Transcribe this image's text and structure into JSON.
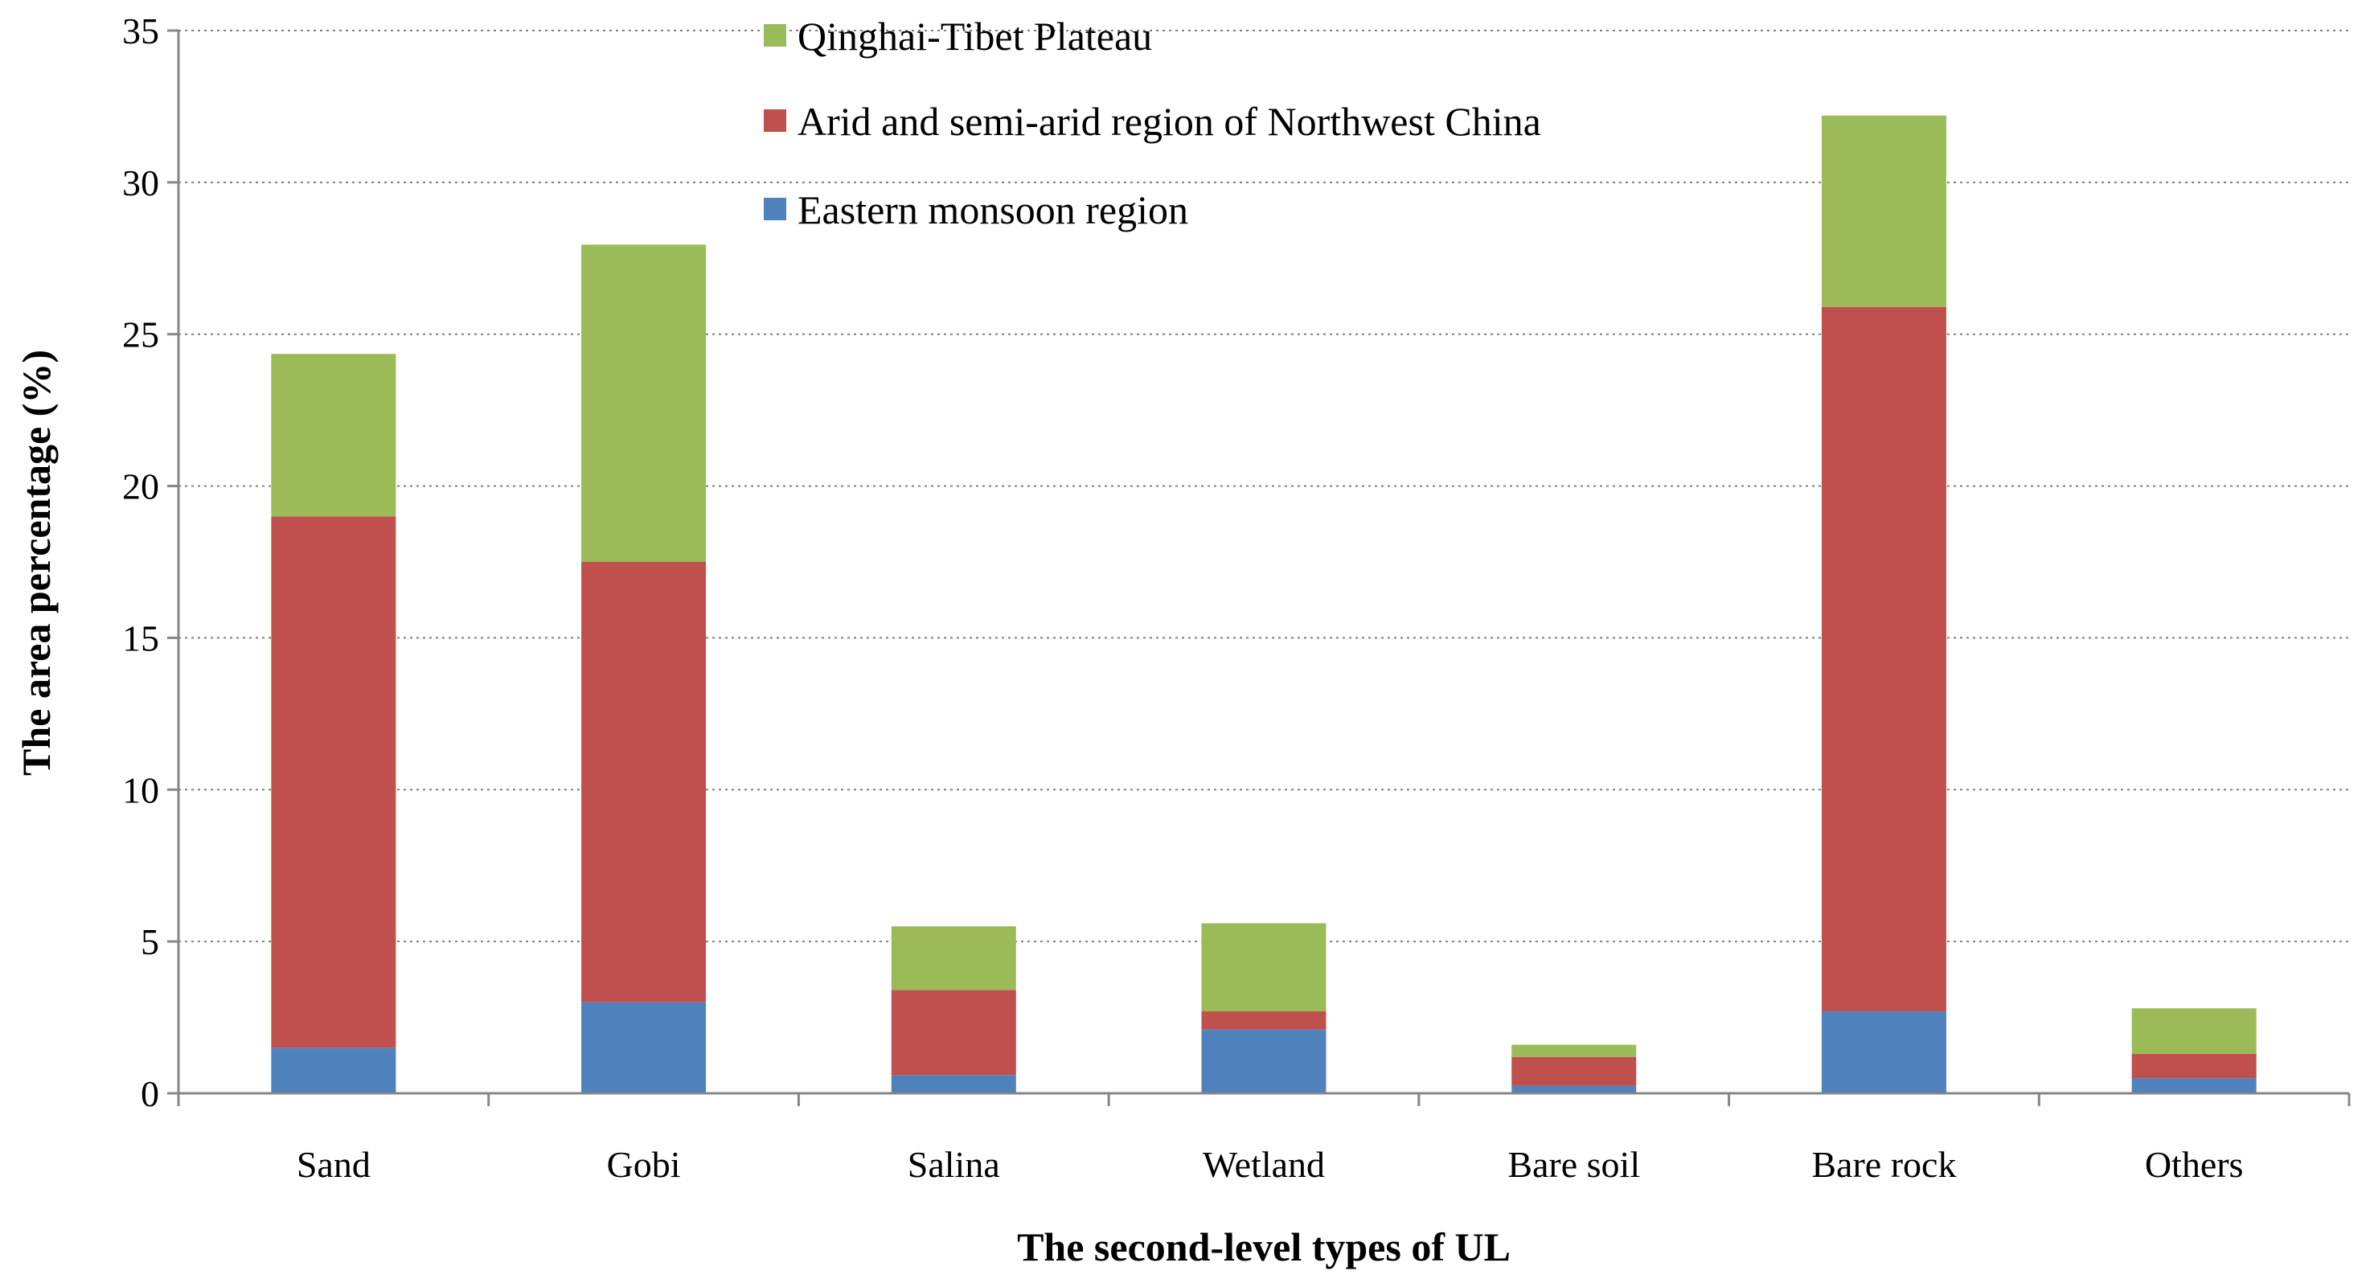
{
  "chart_data": {
    "type": "bar",
    "stacked": true,
    "categories": [
      "Sand",
      "Gobi",
      "Salina",
      "Wetland",
      "Bare soil",
      "Bare rock",
      "Others"
    ],
    "series": [
      {
        "name": "Eastern monsoon region",
        "color": "#4F81BD",
        "values": [
          1.5,
          3.0,
          0.6,
          2.1,
          0.25,
          2.7,
          0.5
        ]
      },
      {
        "name": "Arid and semi-arid region of Northwest China",
        "color": "#C0504D",
        "values": [
          17.5,
          14.5,
          2.8,
          0.6,
          0.95,
          23.2,
          0.8
        ]
      },
      {
        "name": "Qinghai-Tibet Plateau",
        "color": "#9BBB59",
        "values": [
          5.35,
          10.45,
          2.1,
          2.9,
          0.4,
          6.3,
          1.5
        ]
      }
    ],
    "legend_order": [
      "Qinghai-Tibet Plateau",
      "Arid and semi-arid region of Northwest China",
      "Eastern monsoon region"
    ],
    "legend_position": "top-center",
    "xlabel": "The second-level types of UL",
    "ylabel": "The area percentage (%)",
    "ylim": [
      0,
      35
    ],
    "yticks": [
      0,
      5,
      10,
      15,
      20,
      25,
      30,
      35
    ],
    "grid": "horizontal-dotted"
  }
}
